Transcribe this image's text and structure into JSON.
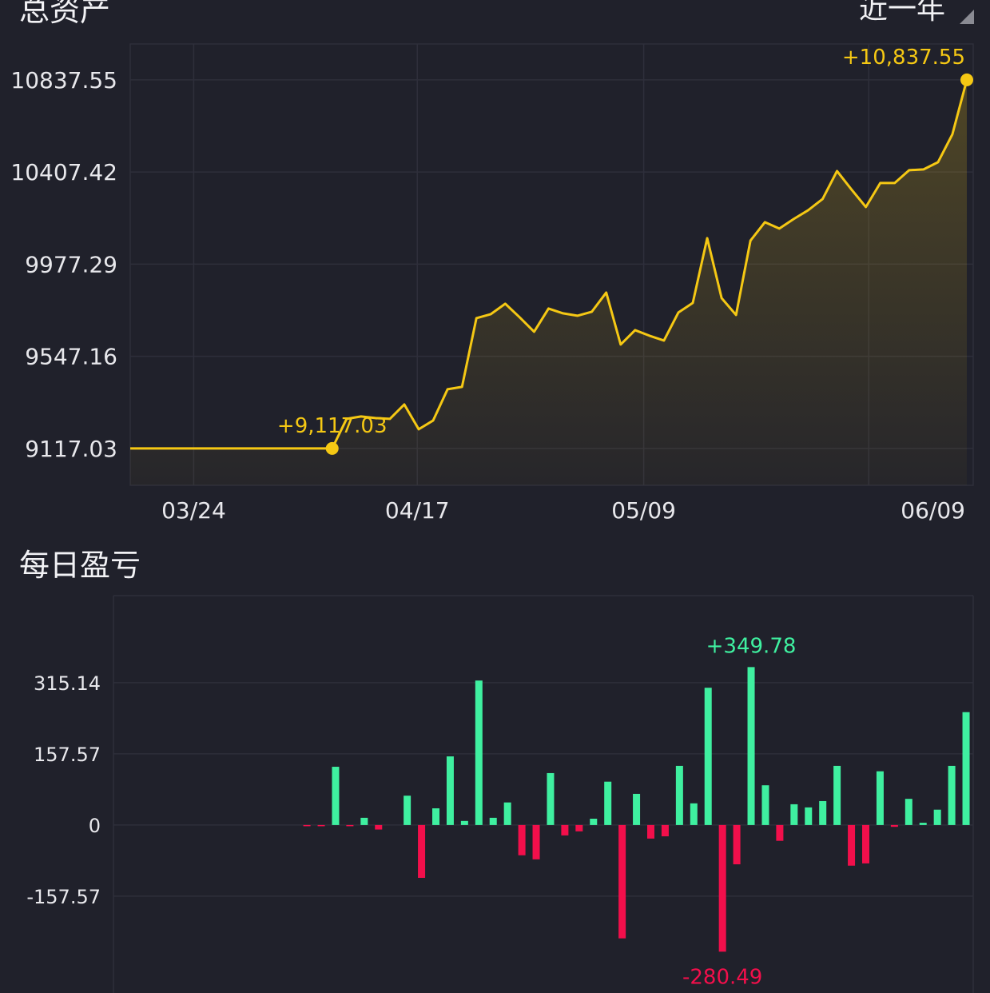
{
  "header": {
    "title": "总资产",
    "range_label": "近一年"
  },
  "section2": {
    "title": "每日盈亏"
  },
  "colors": {
    "background": "#20212b",
    "grid": "#2e2f3b",
    "line": "#f5c814",
    "gain": "#3ff0a0",
    "loss": "#f20f4b"
  },
  "chart_data": [
    {
      "type": "area",
      "y_ticks": [
        "10837.55",
        "10407.42",
        "9977.29",
        "9547.16",
        "9117.03"
      ],
      "y_tick_values": [
        10837.55,
        10407.42,
        9977.29,
        9547.16,
        9117.03
      ],
      "ylim": [
        8945,
        11005
      ],
      "x_ticks": [
        {
          "label": "03/24",
          "at": 4.4
        },
        {
          "label": "04/17",
          "at": 19.9
        },
        {
          "label": "05/09",
          "at": 35.6
        },
        {
          "label": "06/09",
          "at": 51.2
        }
      ],
      "values": [
        9117.03,
        9117.03,
        9117.03,
        9117.03,
        9117.03,
        9117.03,
        9117.03,
        9117.03,
        9117.03,
        9117.03,
        9117.03,
        9117.03,
        9117.03,
        9117.03,
        9117.03,
        9255.1,
        9266.3,
        9258.8,
        9255.1,
        9322.3,
        9206.6,
        9247.6,
        9393.2,
        9404.4,
        9725.3,
        9744.0,
        9792.5,
        9729.0,
        9661.9,
        9770.1,
        9747.7,
        9736.5,
        9755.2,
        9844.7,
        9602.2,
        9669.3,
        9643.2,
        9620.8,
        9751.4,
        9796.2,
        10098.5,
        9818.6,
        9740.2,
        10087.3,
        10173.2,
        10143.3,
        10188.1,
        10229.1,
        10281.4,
        10412.0,
        10326.2,
        10244.1,
        10356.0,
        10356.0,
        10415.7,
        10419.5,
        10453.1,
        10583.7,
        10837.55
      ],
      "annotations": [
        {
          "index": 14,
          "label": "+9,117.03"
        },
        {
          "index": 58,
          "label": "+10,837.55"
        }
      ],
      "grid": true
    },
    {
      "type": "bar",
      "y_ticks": [
        "315.14",
        "157.57",
        "0",
        "-157.57"
      ],
      "y_tick_values": [
        315.14,
        157.57,
        0,
        -157.57
      ],
      "ylim": [
        -372,
        508
      ],
      "values": [
        0,
        0,
        0,
        0,
        0,
        0,
        0,
        0,
        0,
        0,
        0,
        0,
        0,
        -1,
        -2,
        129,
        -2,
        16,
        -10,
        0,
        65,
        -117,
        37,
        152,
        9,
        320,
        16,
        50,
        -67,
        -76,
        115,
        -23,
        -14,
        14,
        96,
        -251,
        69,
        -30,
        -25,
        131,
        48,
        304,
        -280.49,
        -87,
        349.78,
        88,
        -35,
        46,
        39,
        53,
        131,
        -90,
        -85,
        119,
        -4,
        58,
        5,
        34,
        131,
        250
      ],
      "annotations": [
        {
          "index": 44,
          "label": "+349.78",
          "kind": "max"
        },
        {
          "index": 42,
          "label": "-280.49",
          "kind": "min"
        }
      ],
      "grid": true
    }
  ]
}
